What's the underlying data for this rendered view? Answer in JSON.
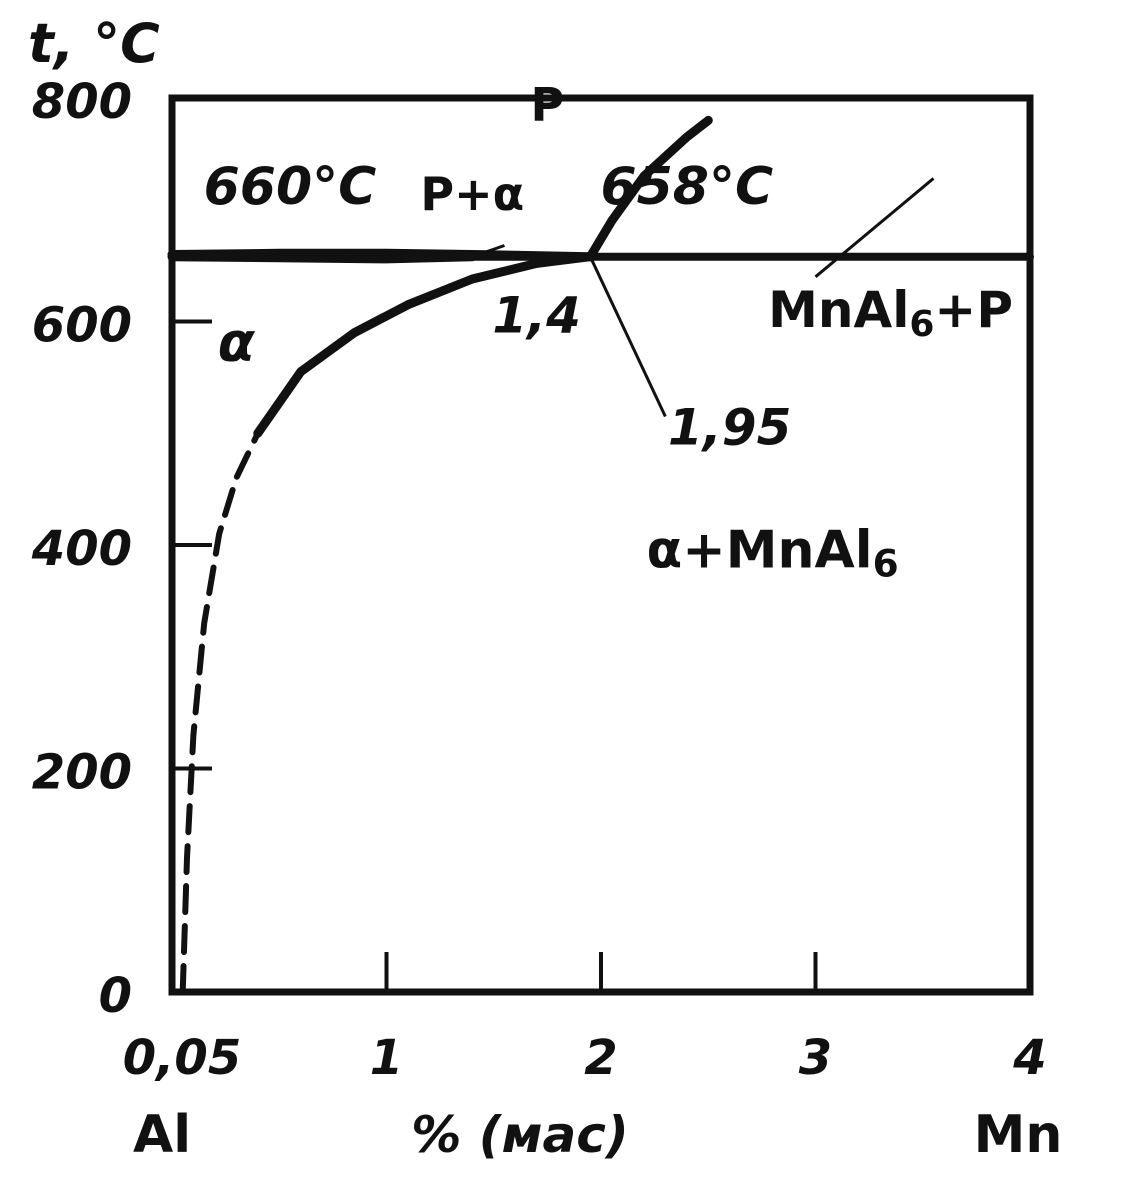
{
  "chart_data": {
    "type": "phase-diagram",
    "ylabel": "t, °C",
    "xlabel": "% (мас)",
    "x_left_component": "Al",
    "x_right_component": "Mn",
    "xlim": [
      0,
      4
    ],
    "ylim": [
      0,
      800
    ],
    "x_ticks": [
      {
        "value": 0,
        "label": "0,05"
      },
      {
        "value": 1,
        "label": "1"
      },
      {
        "value": 2,
        "label": "2"
      },
      {
        "value": 3,
        "label": "3"
      },
      {
        "value": 4,
        "label": "4"
      }
    ],
    "y_ticks": [
      {
        "value": 0,
        "label": "0"
      },
      {
        "value": 200,
        "label": "200"
      },
      {
        "value": 400,
        "label": "400"
      },
      {
        "value": 600,
        "label": "600"
      },
      {
        "value": 800,
        "label": "800"
      }
    ],
    "series": [
      {
        "role": "peritectic-isotherm",
        "style": "thick",
        "x": [
          0,
          4
        ],
        "y": [
          658,
          658
        ]
      },
      {
        "role": "liquidus-upper",
        "style": "thick",
        "x": [
          0,
          0.5,
          1.0,
          1.4,
          1.95
        ],
        "y": [
          660,
          661,
          661,
          660,
          658
        ]
      },
      {
        "role": "solidus-lower",
        "style": "thick",
        "x": [
          0,
          0.5,
          1.0,
          1.4
        ],
        "y": [
          658,
          657,
          656,
          658
        ]
      },
      {
        "role": "solvus",
        "style": "thick",
        "x": [
          0.4,
          0.6,
          0.85,
          1.1,
          1.4,
          1.7,
          1.95
        ],
        "y": [
          500,
          555,
          590,
          615,
          638,
          652,
          658
        ]
      },
      {
        "role": "solvus-dashed",
        "style": "dashed",
        "x": [
          0.05,
          0.07,
          0.1,
          0.15,
          0.22,
          0.3,
          0.4
        ],
        "y": [
          0,
          120,
          230,
          330,
          410,
          460,
          500
        ]
      },
      {
        "role": "liquidus-MnAl6",
        "style": "thick",
        "x": [
          1.95,
          2.05,
          2.2,
          2.4,
          2.5
        ],
        "y": [
          658,
          690,
          730,
          765,
          780
        ]
      }
    ],
    "annotations": [
      {
        "text": "660°C",
        "x": 0.55,
        "y": 705
      },
      {
        "text": "P+α",
        "x": 1.4,
        "y": 700
      },
      {
        "text": "P",
        "x": 1.75,
        "y": 780
      },
      {
        "text": "658°C",
        "x": 2.4,
        "y": 705
      },
      {
        "text": "1,4",
        "x": 1.7,
        "y": 590
      },
      {
        "text": "1,95",
        "x": 2.6,
        "y": 490
      },
      {
        "text": "α",
        "x": 0.3,
        "y": 565
      },
      {
        "text": "MnAl6+P",
        "x": 3.35,
        "y": 595
      },
      {
        "text": "α+MnAl6",
        "x": 2.8,
        "y": 380
      }
    ]
  }
}
